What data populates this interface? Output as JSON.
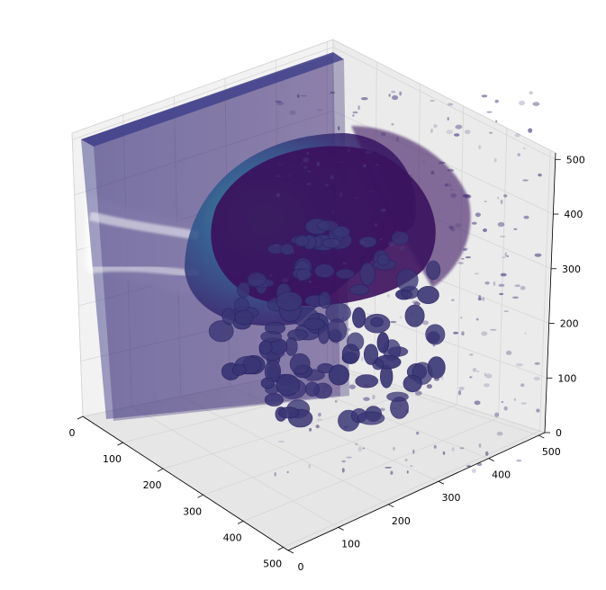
{
  "chart_data": {
    "type": "volume-3d",
    "title": "",
    "xlabel": "",
    "ylabel": "",
    "zlabel": "",
    "xlim": [
      0,
      512
    ],
    "ylim": [
      0,
      512
    ],
    "zlim": [
      0,
      512
    ],
    "grid": true,
    "colormap": "viridis",
    "x_ticks": [
      "0",
      "100",
      "200",
      "300",
      "400",
      "500"
    ],
    "y_ticks": [
      "0",
      "100",
      "200",
      "300",
      "400",
      "500"
    ],
    "z_ticks": [
      "0",
      "100",
      "200",
      "300",
      "400",
      "500"
    ]
  },
  "colors": {
    "pane_left": "#f2f2f2",
    "pane_right": "#ebebeb",
    "pane_floor": "#e6e6e6",
    "gridline": "#d6d6d6",
    "slab": "#3b2f78",
    "dome": "#2c3e8a",
    "dome_highlight": "#2ba08a",
    "dark_core": "#3b0f5c",
    "blob": "#3a3675",
    "speck": "#4a3a7a"
  }
}
